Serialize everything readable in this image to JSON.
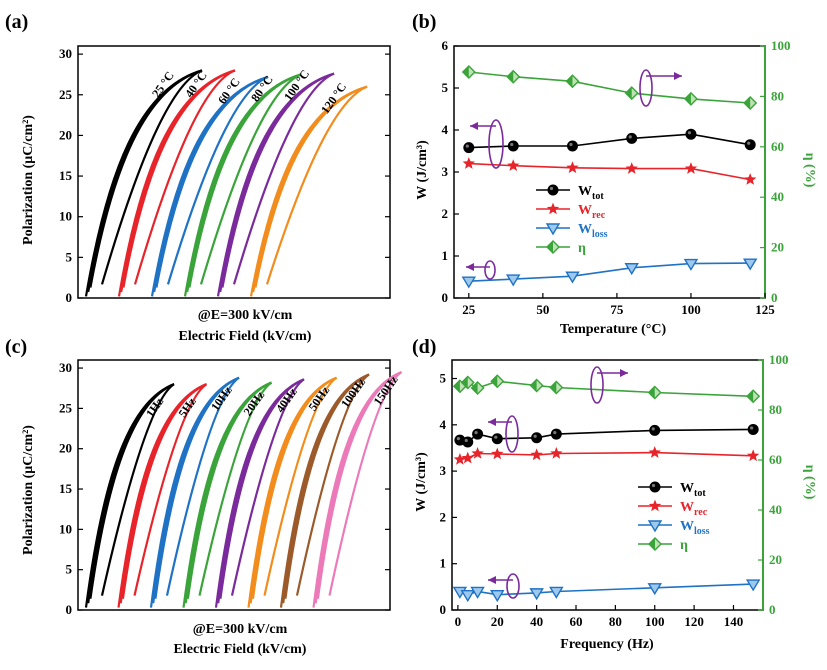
{
  "panel_labels": [
    "(a)",
    "(b)",
    "(c)",
    "(d)"
  ],
  "colors": {
    "black": "#000000",
    "red": "#e8242b",
    "blue": "#1f72c4",
    "green": "#3aa43a",
    "purple": "#7b2a9c",
    "orange": "#f28c1c",
    "brown": "#9c5a2a",
    "pink": "#ec7ab8"
  },
  "chart_data": [
    {
      "id": "a",
      "type": "line",
      "xlabel": "Electric Field (kV/cm)",
      "annotation": "@E=300 kV/cm",
      "ylabel": "Polarization (μC/cm²)",
      "ylim": [
        0,
        31
      ],
      "yticks": [
        0,
        5,
        10,
        15,
        20,
        25,
        30
      ],
      "grid": false,
      "series": [
        {
          "name": "25 °C",
          "color": "#000000",
          "pmax": 28.0,
          "pr": 0.2
        },
        {
          "name": "40 °C",
          "color": "#e8242b",
          "pmax": 28.0,
          "pr": 0.2
        },
        {
          "name": "60 °C",
          "color": "#1f72c4",
          "pmax": 27.2,
          "pr": 0.2
        },
        {
          "name": "80 °C",
          "color": "#3aa43a",
          "pmax": 27.5,
          "pr": 0.2
        },
        {
          "name": "100 °C",
          "color": "#7b2a9c",
          "pmax": 27.6,
          "pr": 0.2
        },
        {
          "name": "120 °C",
          "color": "#f28c1c",
          "pmax": 26.0,
          "pr": 0.2
        }
      ]
    },
    {
      "id": "b",
      "type": "line",
      "xlabel": "Temperature (°C)",
      "ylabel": "W (J/cm³)",
      "y2label": "η (%)",
      "xlim": [
        20,
        125
      ],
      "xticks": [
        25,
        50,
        75,
        100,
        125
      ],
      "ylim": [
        0,
        6
      ],
      "yticks": [
        0,
        1,
        2,
        3,
        4,
        5,
        6
      ],
      "y2lim": [
        0,
        100
      ],
      "y2ticks": [
        0,
        20,
        40,
        60,
        80,
        100
      ],
      "x": [
        25,
        40,
        60,
        80,
        100,
        120
      ],
      "series": [
        {
          "name": "W",
          "sub": "tot",
          "axis": "left",
          "marker": "circle",
          "color": "#000000",
          "values": [
            3.58,
            3.62,
            3.62,
            3.8,
            3.9,
            3.65
          ]
        },
        {
          "name": "W",
          "sub": "rec",
          "axis": "left",
          "marker": "star",
          "color": "#e8242b",
          "values": [
            3.2,
            3.15,
            3.1,
            3.08,
            3.08,
            2.82
          ]
        },
        {
          "name": "W",
          "sub": "loss",
          "axis": "left",
          "marker": "tri",
          "color": "#1f72c4",
          "values": [
            0.4,
            0.45,
            0.52,
            0.72,
            0.82,
            0.83
          ]
        },
        {
          "name": "η",
          "sub": "",
          "axis": "right",
          "marker": "diamond",
          "color": "#3aa43a",
          "values": [
            89.7,
            87.8,
            86.0,
            81.3,
            79.0,
            77.4
          ]
        }
      ],
      "legend_position": "center-left"
    },
    {
      "id": "c",
      "type": "line",
      "xlabel": "Electric Field (kV/cm)",
      "annotation": "@E=300 kV/cm",
      "ylabel": "Polarization (μC/cm²)",
      "ylim": [
        0,
        31
      ],
      "yticks": [
        0,
        5,
        10,
        15,
        20,
        25,
        30
      ],
      "grid": false,
      "series": [
        {
          "name": "1Hz",
          "color": "#000000",
          "pmax": 28.0,
          "pr": 0.3
        },
        {
          "name": "5Hz",
          "color": "#e8242b",
          "pmax": 28.0,
          "pr": 0.3
        },
        {
          "name": "10Hz",
          "color": "#1f72c4",
          "pmax": 28.8,
          "pr": 0.3
        },
        {
          "name": "20Hz",
          "color": "#3aa43a",
          "pmax": 28.2,
          "pr": 0.3
        },
        {
          "name": "40Hz",
          "color": "#7b2a9c",
          "pmax": 28.6,
          "pr": 0.3
        },
        {
          "name": "50Hz",
          "color": "#f28c1c",
          "pmax": 28.8,
          "pr": 0.3
        },
        {
          "name": "100Hz",
          "color": "#9c5a2a",
          "pmax": 29.2,
          "pr": 0.3
        },
        {
          "name": "150Hz",
          "color": "#ec7ab8",
          "pmax": 29.5,
          "pr": 0.3
        }
      ]
    },
    {
      "id": "d",
      "type": "line",
      "xlabel": "Frequency (Hz)",
      "ylabel": "W (J/cm³)",
      "y2label": "η (%)",
      "xlim": [
        -3,
        155
      ],
      "xticks": [
        0,
        20,
        40,
        60,
        80,
        100,
        120,
        140
      ],
      "ylim": [
        0,
        5.4
      ],
      "yticks": [
        0,
        1,
        2,
        3,
        4,
        5
      ],
      "y2lim": [
        0,
        100
      ],
      "y2ticks": [
        0,
        20,
        40,
        60,
        80,
        100
      ],
      "x": [
        1,
        5,
        10,
        20,
        40,
        50,
        100,
        150
      ],
      "series": [
        {
          "name": "W",
          "sub": "tot",
          "axis": "left",
          "marker": "circle",
          "color": "#000000",
          "values": [
            3.67,
            3.63,
            3.8,
            3.7,
            3.72,
            3.8,
            3.88,
            3.9
          ]
        },
        {
          "name": "W",
          "sub": "rec",
          "axis": "left",
          "marker": "star",
          "color": "#e8242b",
          "values": [
            3.25,
            3.28,
            3.38,
            3.37,
            3.35,
            3.38,
            3.4,
            3.33
          ]
        },
        {
          "name": "W",
          "sub": "loss",
          "axis": "left",
          "marker": "tri",
          "color": "#1f72c4",
          "values": [
            0.4,
            0.33,
            0.4,
            0.33,
            0.37,
            0.4,
            0.48,
            0.56
          ]
        },
        {
          "name": "η",
          "sub": "",
          "axis": "right",
          "marker": "diamond",
          "color": "#3aa43a",
          "values": [
            89.5,
            91.0,
            88.8,
            91.5,
            89.8,
            89.0,
            87.0,
            85.5
          ]
        }
      ],
      "legend_position": "center-right"
    }
  ]
}
